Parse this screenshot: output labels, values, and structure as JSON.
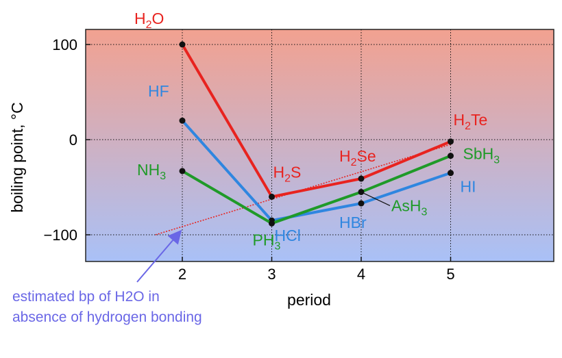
{
  "chart_data": {
    "type": "line",
    "xlabel": "period",
    "ylabel": "boiling point, °C",
    "xlim": [
      1,
      6.2
    ],
    "ylim": [
      -130,
      115
    ],
    "x_ticks": [
      2,
      3,
      4,
      5
    ],
    "y_ticks": [
      100,
      0,
      -100
    ],
    "y_tick_labels": [
      "100",
      "0",
      "−100"
    ],
    "grid": true,
    "background_gradient": [
      "#f2a190",
      "#a9c1f7"
    ],
    "series": [
      {
        "color": "#e8231f",
        "points": [
          {
            "x": 2,
            "y": 100,
            "label": "H",
            "sub": "2",
            "post": "O"
          },
          {
            "x": 3,
            "y": -60,
            "label": "H",
            "sub": "2",
            "post": "S"
          },
          {
            "x": 4,
            "y": -41,
            "label": "H",
            "sub": "2",
            "post": "Se"
          },
          {
            "x": 5,
            "y": -2,
            "label": "H",
            "sub": "2",
            "post": "Te"
          }
        ]
      },
      {
        "color": "#2f86e0",
        "points": [
          {
            "x": 2,
            "y": 20,
            "label": "HF",
            "sub": "",
            "post": ""
          },
          {
            "x": 3,
            "y": -85,
            "label": "HCl",
            "sub": "",
            "post": ""
          },
          {
            "x": 4,
            "y": -67,
            "label": "HBr",
            "sub": "",
            "post": ""
          },
          {
            "x": 5,
            "y": -35,
            "label": "HI",
            "sub": "",
            "post": ""
          }
        ]
      },
      {
        "color": "#1f9a28",
        "points": [
          {
            "x": 2,
            "y": -33,
            "label": "NH",
            "sub": "3",
            "post": ""
          },
          {
            "x": 3,
            "y": -88,
            "label": "PH",
            "sub": "3",
            "post": ""
          },
          {
            "x": 4,
            "y": -55,
            "label": "AsH",
            "sub": "3",
            "post": ""
          },
          {
            "x": 5,
            "y": -17,
            "label": "SbH",
            "sub": "3",
            "post": ""
          }
        ]
      }
    ],
    "extrapolation": {
      "color": "#e8231f",
      "from": {
        "x": 1.7,
        "y": -100
      },
      "to": {
        "x": 5,
        "y": -5
      }
    },
    "annotation": {
      "text_line1": "estimated bp of H2O in",
      "text_line2": "absence of hydrogen bonding",
      "color": "#6a67e6",
      "arrow_to": {
        "x": 2,
        "y": -92
      }
    }
  }
}
